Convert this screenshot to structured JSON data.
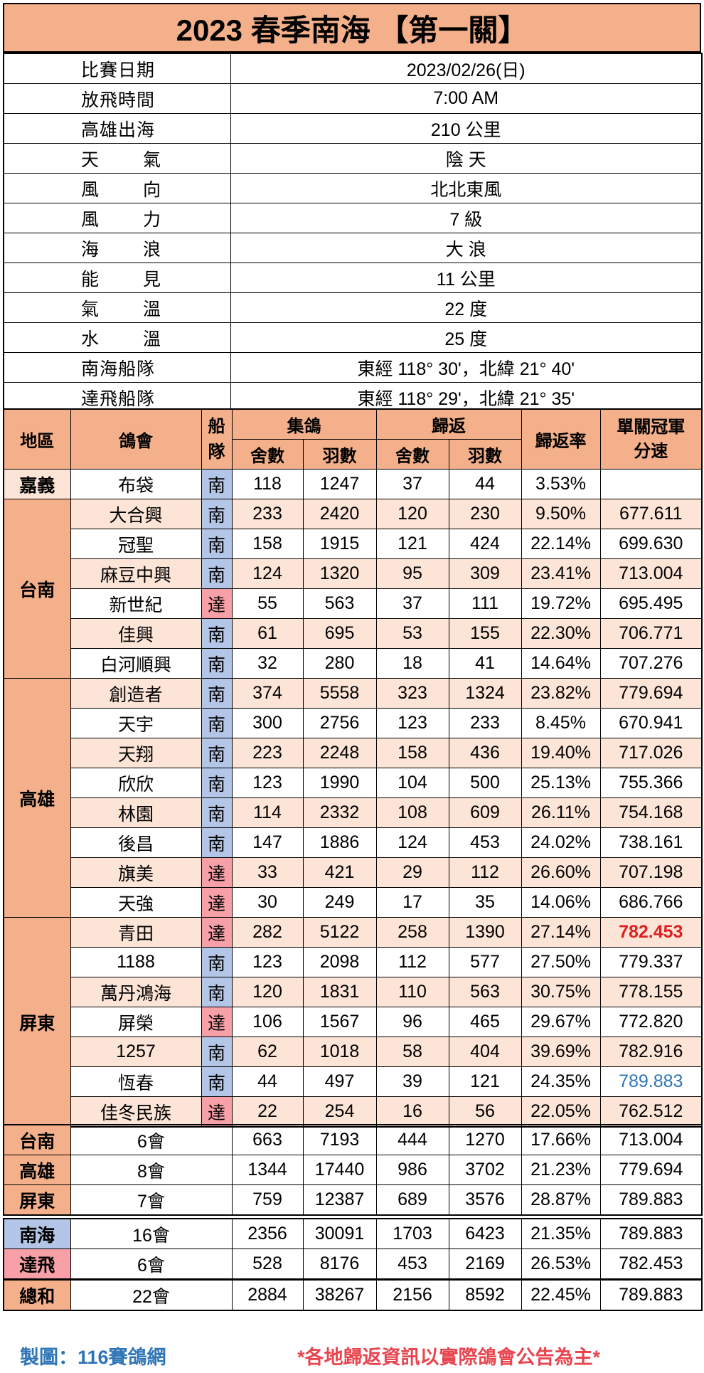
{
  "title": "2023 春季南海 【第一關】",
  "info": [
    {
      "label": "比賽日期",
      "value": "2023/02/26(日)",
      "spread": false
    },
    {
      "label": "放飛時間",
      "value": "7:00 AM",
      "spread": false
    },
    {
      "label": "高雄出海",
      "value": "210 公里",
      "spread": false
    },
    {
      "label": "天 氣",
      "l1": "天",
      "l2": "氣",
      "value": "陰 天",
      "spread": true
    },
    {
      "label": "風 向",
      "l1": "風",
      "l2": "向",
      "value": "北北東風",
      "spread": true
    },
    {
      "label": "風 力",
      "l1": "風",
      "l2": "力",
      "value": "7 級",
      "spread": true
    },
    {
      "label": "海 浪",
      "l1": "海",
      "l2": "浪",
      "value": "大 浪",
      "spread": true
    },
    {
      "label": "能 見",
      "l1": "能",
      "l2": "見",
      "value": "11 公里",
      "spread": true
    },
    {
      "label": "氣 溫",
      "l1": "氣",
      "l2": "溫",
      "value": "22 度",
      "spread": true
    },
    {
      "label": "水 溫",
      "l1": "水",
      "l2": "溫",
      "value": "25 度",
      "spread": true
    },
    {
      "label": "南海船隊",
      "value": "東經 118° 30'，北緯 21° 40'",
      "spread": false
    },
    {
      "label": "達飛船隊",
      "value": "東經 118° 29'，北緯 21° 35'",
      "spread": false
    }
  ],
  "header": {
    "region": "地區",
    "club": "鴿會",
    "fleet_a": "船",
    "fleet_b": "隊",
    "collect": "集鴿",
    "return": "歸返",
    "lofts": "舍數",
    "birds": "羽數",
    "rate": "歸返率",
    "speed_a": "單關冠軍",
    "speed_b": "分速"
  },
  "regions": [
    {
      "name": "嘉義",
      "rows": [
        {
          "club": "布袋",
          "fleet": "南",
          "c_lofts": "118",
          "c_birds": "1247",
          "r_lofts": "37",
          "r_birds": "44",
          "rate": "3.53%",
          "speed": ""
        }
      ]
    },
    {
      "name": "台南",
      "rows": [
        {
          "club": "大合興",
          "fleet": "南",
          "c_lofts": "233",
          "c_birds": "2420",
          "r_lofts": "120",
          "r_birds": "230",
          "rate": "9.50%",
          "speed": "677.611"
        },
        {
          "club": "冠聖",
          "fleet": "南",
          "c_lofts": "158",
          "c_birds": "1915",
          "r_lofts": "121",
          "r_birds": "424",
          "rate": "22.14%",
          "speed": "699.630"
        },
        {
          "club": "麻豆中興",
          "fleet": "南",
          "c_lofts": "124",
          "c_birds": "1320",
          "r_lofts": "95",
          "r_birds": "309",
          "rate": "23.41%",
          "speed": "713.004"
        },
        {
          "club": "新世紀",
          "fleet": "達",
          "c_lofts": "55",
          "c_birds": "563",
          "r_lofts": "37",
          "r_birds": "111",
          "rate": "19.72%",
          "speed": "695.495"
        },
        {
          "club": "佳興",
          "fleet": "南",
          "c_lofts": "61",
          "c_birds": "695",
          "r_lofts": "53",
          "r_birds": "155",
          "rate": "22.30%",
          "speed": "706.771"
        },
        {
          "club": "白河順興",
          "fleet": "南",
          "c_lofts": "32",
          "c_birds": "280",
          "r_lofts": "18",
          "r_birds": "41",
          "rate": "14.64%",
          "speed": "707.276"
        }
      ]
    },
    {
      "name": "高雄",
      "rows": [
        {
          "club": "創造者",
          "fleet": "南",
          "c_lofts": "374",
          "c_birds": "5558",
          "r_lofts": "323",
          "r_birds": "1324",
          "rate": "23.82%",
          "speed": "779.694"
        },
        {
          "club": "天宇",
          "fleet": "南",
          "c_lofts": "300",
          "c_birds": "2756",
          "r_lofts": "123",
          "r_birds": "233",
          "rate": "8.45%",
          "speed": "670.941"
        },
        {
          "club": "天翔",
          "fleet": "南",
          "c_lofts": "223",
          "c_birds": "2248",
          "r_lofts": "158",
          "r_birds": "436",
          "rate": "19.40%",
          "speed": "717.026"
        },
        {
          "club": "欣欣",
          "fleet": "南",
          "c_lofts": "123",
          "c_birds": "1990",
          "r_lofts": "104",
          "r_birds": "500",
          "rate": "25.13%",
          "speed": "755.366"
        },
        {
          "club": "林園",
          "fleet": "南",
          "c_lofts": "114",
          "c_birds": "2332",
          "r_lofts": "108",
          "r_birds": "609",
          "rate": "26.11%",
          "speed": "754.168"
        },
        {
          "club": "後昌",
          "fleet": "南",
          "c_lofts": "147",
          "c_birds": "1886",
          "r_lofts": "124",
          "r_birds": "453",
          "rate": "24.02%",
          "speed": "738.161"
        },
        {
          "club": "旗美",
          "fleet": "達",
          "c_lofts": "33",
          "c_birds": "421",
          "r_lofts": "29",
          "r_birds": "112",
          "rate": "26.60%",
          "speed": "707.198"
        },
        {
          "club": "天強",
          "fleet": "達",
          "c_lofts": "30",
          "c_birds": "249",
          "r_lofts": "17",
          "r_birds": "35",
          "rate": "14.06%",
          "speed": "686.766"
        }
      ]
    },
    {
      "name": "屏東",
      "rows": [
        {
          "club": "青田",
          "fleet": "達",
          "c_lofts": "282",
          "c_birds": "5122",
          "r_lofts": "258",
          "r_birds": "1390",
          "rate": "27.14%",
          "speed": "782.453",
          "speed_style": "red"
        },
        {
          "club": "1188",
          "fleet": "南",
          "c_lofts": "123",
          "c_birds": "2098",
          "r_lofts": "112",
          "r_birds": "577",
          "rate": "27.50%",
          "speed": "779.337"
        },
        {
          "club": "萬丹鴻海",
          "fleet": "南",
          "c_lofts": "120",
          "c_birds": "1831",
          "r_lofts": "110",
          "r_birds": "563",
          "rate": "30.75%",
          "speed": "778.155"
        },
        {
          "club": "屏榮",
          "fleet": "達",
          "c_lofts": "106",
          "c_birds": "1567",
          "r_lofts": "96",
          "r_birds": "465",
          "rate": "29.67%",
          "speed": "772.820"
        },
        {
          "club": "1257",
          "fleet": "南",
          "c_lofts": "62",
          "c_birds": "1018",
          "r_lofts": "58",
          "r_birds": "404",
          "rate": "39.69%",
          "speed": "782.916"
        },
        {
          "club": "恆春",
          "fleet": "南",
          "c_lofts": "44",
          "c_birds": "497",
          "r_lofts": "39",
          "r_birds": "121",
          "rate": "24.35%",
          "speed": "789.883",
          "speed_style": "blue"
        },
        {
          "club": "佳冬民族",
          "fleet": "達",
          "c_lofts": "22",
          "c_birds": "254",
          "r_lofts": "16",
          "r_birds": "56",
          "rate": "22.05%",
          "speed": "762.512"
        }
      ]
    }
  ],
  "region_summary": [
    {
      "name": "台南",
      "clubs": "6會",
      "c_lofts": "663",
      "c_birds": "7193",
      "r_lofts": "444",
      "r_birds": "1270",
      "rate": "17.66%",
      "speed": "713.004"
    },
    {
      "name": "高雄",
      "clubs": "8會",
      "c_lofts": "1344",
      "c_birds": "17440",
      "r_lofts": "986",
      "r_birds": "3702",
      "rate": "21.23%",
      "speed": "779.694"
    },
    {
      "name": "屏東",
      "clubs": "7會",
      "c_lofts": "759",
      "c_birds": "12387",
      "r_lofts": "689",
      "r_birds": "3576",
      "rate": "28.87%",
      "speed": "789.883"
    }
  ],
  "fleet_summary": [
    {
      "name": "南海",
      "color": "#b4c6e7",
      "clubs": "16會",
      "c_lofts": "2356",
      "c_birds": "30091",
      "r_lofts": "1703",
      "r_birds": "6423",
      "rate": "21.35%",
      "speed": "789.883"
    },
    {
      "name": "達飛",
      "color": "#f8a0a8",
      "clubs": "6會",
      "c_lofts": "528",
      "c_birds": "8176",
      "r_lofts": "453",
      "r_birds": "2169",
      "rate": "26.53%",
      "speed": "782.453"
    }
  ],
  "grand_total": {
    "name": "總和",
    "clubs": "22會",
    "c_lofts": "2884",
    "c_birds": "38267",
    "r_lofts": "2156",
    "r_birds": "8592",
    "rate": "22.45%",
    "speed": "789.883"
  },
  "footer": {
    "credit": "製圖：116賽鴿網",
    "note": "*各地歸返資訊以實際鴿會公告為主*"
  },
  "colors": {
    "header_orange": "#f4b08a",
    "row_peach": "#fce4d6",
    "fleet_nan_blue": "#b4c6e7",
    "fleet_da_pink": "#f8a0a8",
    "highlight_red": "#e02020",
    "highlight_blue": "#2e75b6"
  }
}
